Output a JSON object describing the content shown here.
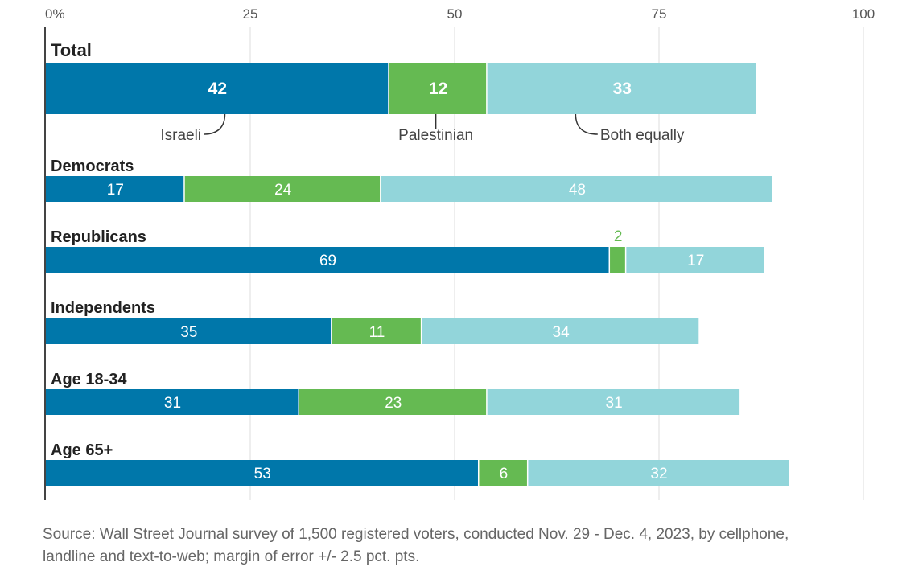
{
  "chart_data": {
    "type": "bar",
    "orientation": "horizontal",
    "stacked": true,
    "xlim": [
      0,
      100
    ],
    "x_ticks": [
      "0%",
      "25",
      "50",
      "75",
      "100"
    ],
    "grid": true,
    "categories": [
      "Total",
      "Democrats",
      "Republicans",
      "Independents",
      "Age 18-34",
      "Age 65+"
    ],
    "series": [
      {
        "name": "Israeli",
        "color": "#0077aa",
        "values": [
          42,
          17,
          69,
          35,
          31,
          53
        ]
      },
      {
        "name": "Palestinian",
        "color": "#65ba52",
        "values": [
          12,
          24,
          2,
          11,
          23,
          6
        ]
      },
      {
        "name": "Both equally",
        "color": "#92d5da",
        "values": [
          33,
          48,
          17,
          34,
          31,
          32
        ]
      }
    ]
  },
  "source": {
    "line1": "Source:  Wall Street Journal survey of 1,500 registered voters, conducted Nov. 29 - Dec. 4, 2023, by cellphone,",
    "line2": "landline and text-to-web; margin of error +/- 2.5 pct. pts."
  }
}
